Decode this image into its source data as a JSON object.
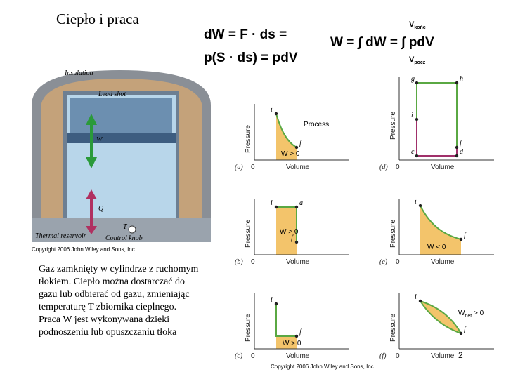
{
  "title": "Ciepło i praca",
  "formula": {
    "line1": "dW = F · ds =",
    "line2": "p(S · ds) = pdV",
    "integral": "W = ∫ dW = ∫ pdV",
    "upper": {
      "symbol": "V",
      "sub": "końc"
    },
    "lower": {
      "symbol": "V",
      "sub": "pocz"
    }
  },
  "figure": {
    "insulation": "Insulation",
    "lead_shot": "Lead shot",
    "work": "W",
    "heat": "Q",
    "reservoir": "Thermal reservoir",
    "knob": "Control knob",
    "temperature": "T",
    "copyright": "Copyright 2006 John Wiley and Sons, Inc"
  },
  "paragraph": [
    "Gaz zamknięty w cylindrze z ruchomym",
    "tłokiem. Ciepło można dostarczać do",
    "gazu lub odbierać od gazu, zmieniając",
    "temperaturę T zbiornika cieplnego.",
    "Praca W jest wykonywana dzięki",
    "podnoszeniu lub opuszczaniu tłoka"
  ],
  "panels": [
    {
      "label": "(a)",
      "y_axis": "Pressure",
      "x_axis": "Volume",
      "origin": "0",
      "points": [
        "i",
        "f"
      ],
      "work": "W > 0",
      "process": "Process"
    },
    {
      "label": "(b)",
      "y_axis": "Pressure",
      "x_axis": "Volume",
      "origin": "0",
      "points": [
        "i",
        "a",
        "f"
      ],
      "work": "W > 0"
    },
    {
      "label": "(c)",
      "y_axis": "Pressure",
      "x_axis": "Volume",
      "origin": "0",
      "points": [
        "i",
        "f"
      ],
      "work": "W > 0"
    },
    {
      "label": "(d)",
      "y_axis": "Pressure",
      "x_axis": "Volume",
      "origin": "0",
      "points": [
        "g",
        "h",
        "i",
        "f",
        "c",
        "d"
      ]
    },
    {
      "label": "(e)",
      "y_axis": "Pressure",
      "x_axis": "Volume",
      "origin": "0",
      "points": [
        "i",
        "f"
      ],
      "work": "W < 0"
    },
    {
      "label": "(f)",
      "y_axis": "Pressure",
      "x_axis": "Volume",
      "origin": "0",
      "points": [
        "i",
        "f"
      ],
      "work": "W",
      "work_sub": "net",
      "work_rest": " > 0"
    }
  ],
  "page_number": "2",
  "footer": "Copyright 2006 John Wiley and Sons, Inc"
}
